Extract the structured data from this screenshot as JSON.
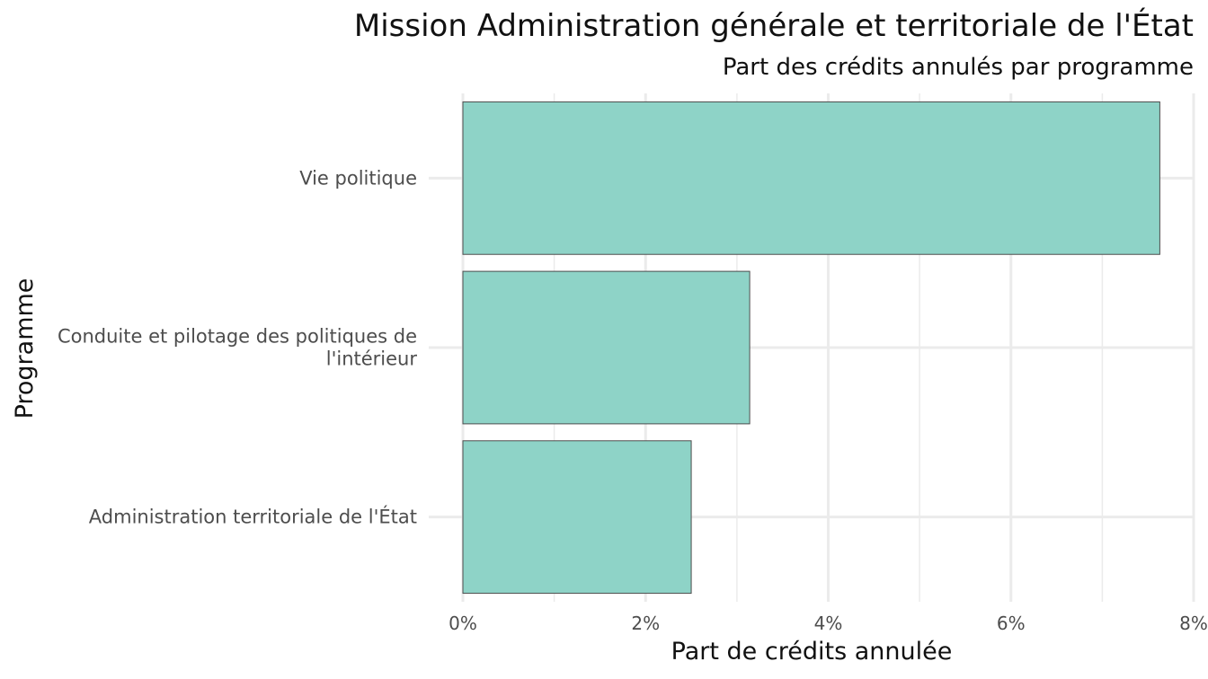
{
  "chart_data": {
    "type": "bar",
    "orientation": "horizontal",
    "title": "Mission Administration générale et territoriale de l'État",
    "subtitle": "Part des crédits annulés par programme",
    "xlabel": "Part de crédits annulée",
    "ylabel": "Programme",
    "categories": [
      [
        "Vie politique"
      ],
      [
        "Conduite et pilotage des politiques de",
        "l'intérieur"
      ],
      [
        "Administration territoriale de l'État"
      ]
    ],
    "values": [
      7.63,
      3.14,
      2.5
    ],
    "xlim": [
      0,
      8
    ],
    "xticks": [
      0,
      2,
      4,
      6,
      8
    ],
    "xtick_labels": [
      "0%",
      "2%",
      "4%",
      "6%",
      "8%"
    ],
    "grid": true,
    "legend": "none",
    "bar_color": "#8ed3c7",
    "bar_stroke": "#4d4d4d",
    "grid_color": "#ebebeb"
  }
}
